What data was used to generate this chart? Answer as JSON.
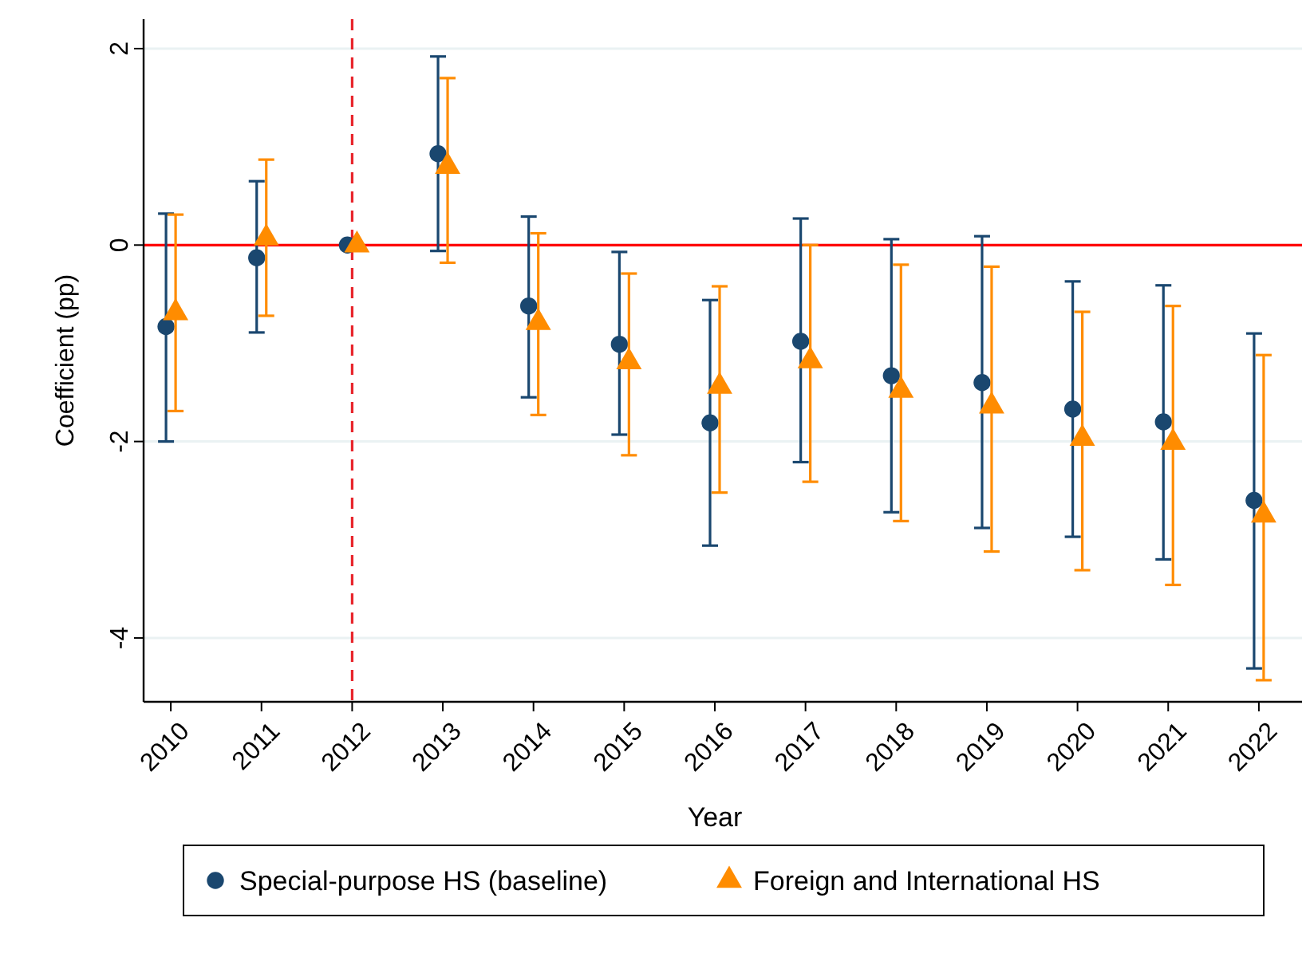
{
  "chart_data": {
    "type": "scatter",
    "xlabel": "Year",
    "ylabel": "Coefficient (pp)",
    "categories": [
      "2010",
      "2011",
      "2012",
      "2013",
      "2014",
      "2015",
      "2016",
      "2017",
      "2018",
      "2019",
      "2020",
      "2021",
      "2022"
    ],
    "ylim": [
      -4.65,
      2.3
    ],
    "yticks": [
      2,
      0,
      -2,
      -4
    ],
    "grid": "y",
    "legend": "bottom",
    "ref_lines": [
      {
        "axis": "y",
        "value": 0,
        "color": "#ff0000",
        "line_style": "solid"
      },
      {
        "axis": "x",
        "value": "2012",
        "color": "#e8242b",
        "line_style": "dashed"
      }
    ],
    "series": [
      {
        "name": "Special-purpose HS (baseline)",
        "color": "#1a476f",
        "marker": "circle",
        "values": [
          -0.83,
          -0.13,
          0,
          0.93,
          -0.62,
          -1.01,
          -1.81,
          -0.98,
          -1.33,
          -1.4,
          -1.67,
          -1.8,
          -2.6
        ],
        "errors": [
          [
            -2.0,
            0.32
          ],
          [
            -0.89,
            0.65
          ],
          null,
          [
            -0.06,
            1.92
          ],
          [
            -1.55,
            0.29
          ],
          [
            -1.93,
            -0.07
          ],
          [
            -3.06,
            -0.56
          ],
          [
            -2.21,
            0.27
          ],
          [
            -2.72,
            0.06
          ],
          [
            -2.88,
            0.09
          ],
          [
            -2.97,
            -0.37
          ],
          [
            -3.2,
            -0.41
          ],
          [
            -4.31,
            -0.9
          ]
        ]
      },
      {
        "name": "Foreign and International HS",
        "color": "#ff8c00",
        "marker": "triangle",
        "values": [
          -0.69,
          0.07,
          0,
          0.8,
          -0.79,
          -1.19,
          -1.44,
          -1.18,
          -1.48,
          -1.64,
          -1.97,
          -2.01,
          -2.75
        ],
        "errors": [
          [
            -1.69,
            0.31
          ],
          [
            -0.72,
            0.87
          ],
          null,
          [
            -0.18,
            1.7
          ],
          [
            -1.73,
            0.12
          ],
          [
            -2.14,
            -0.29
          ],
          [
            -2.52,
            -0.42
          ],
          [
            -2.41,
            0.0
          ],
          [
            -2.81,
            -0.2
          ],
          [
            -3.12,
            -0.22
          ],
          [
            -3.31,
            -0.68
          ],
          [
            -3.46,
            -0.62
          ],
          [
            -4.43,
            -1.12
          ]
        ]
      }
    ]
  }
}
